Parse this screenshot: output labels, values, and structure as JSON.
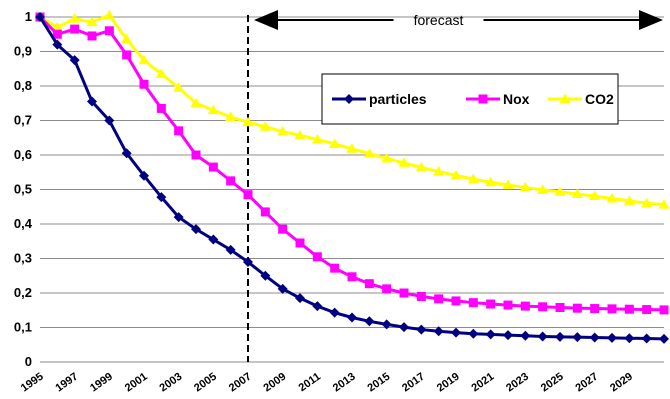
{
  "chart_data": {
    "type": "line",
    "title": "",
    "xlabel": "",
    "ylabel": "",
    "ylim": [
      0,
      1
    ],
    "yticks": [
      "0",
      "0,1",
      "0,2",
      "0,3",
      "0,4",
      "0,5",
      "0,6",
      "0,7",
      "0,8",
      "0,9",
      "1"
    ],
    "x": [
      1995,
      1996,
      1997,
      1998,
      1999,
      2000,
      2001,
      2002,
      2003,
      2004,
      2005,
      2006,
      2007,
      2008,
      2009,
      2010,
      2011,
      2012,
      2013,
      2014,
      2015,
      2016,
      2017,
      2018,
      2019,
      2020,
      2021,
      2022,
      2023,
      2024,
      2025,
      2026,
      2027,
      2028,
      2029,
      2030,
      2031
    ],
    "xtick_labels": [
      "1995",
      "1997",
      "1999",
      "2001",
      "2003",
      "2005",
      "2007",
      "2009",
      "2011",
      "2013",
      "2015",
      "2017",
      "2019",
      "2021",
      "2023",
      "2025",
      "2027",
      "2029"
    ],
    "grid": "horizontal",
    "legend_position": "top-right",
    "series": [
      {
        "name": "particles",
        "color": "#000080",
        "marker": "diamond",
        "values": [
          1.0,
          0.92,
          0.875,
          0.755,
          0.7,
          0.605,
          0.54,
          0.478,
          0.42,
          0.385,
          0.355,
          0.325,
          0.29,
          0.25,
          0.212,
          0.185,
          0.162,
          0.143,
          0.129,
          0.118,
          0.109,
          0.101,
          0.094,
          0.089,
          0.085,
          0.082,
          0.08,
          0.078,
          0.076,
          0.074,
          0.073,
          0.072,
          0.071,
          0.07,
          0.069,
          0.068,
          0.067
        ]
      },
      {
        "name": "Nox",
        "color": "#FF00FF",
        "marker": "square",
        "values": [
          1.0,
          0.95,
          0.965,
          0.945,
          0.96,
          0.89,
          0.805,
          0.735,
          0.67,
          0.6,
          0.565,
          0.525,
          0.485,
          0.435,
          0.385,
          0.345,
          0.305,
          0.272,
          0.247,
          0.227,
          0.212,
          0.2,
          0.19,
          0.183,
          0.177,
          0.172,
          0.168,
          0.165,
          0.162,
          0.16,
          0.158,
          0.156,
          0.155,
          0.154,
          0.153,
          0.152,
          0.151
        ]
      },
      {
        "name": "CO2",
        "color": "#FFFF00",
        "marker": "triangle",
        "values": [
          1.0,
          0.97,
          0.995,
          0.985,
          1.005,
          0.935,
          0.875,
          0.835,
          0.795,
          0.75,
          0.73,
          0.71,
          0.695,
          0.682,
          0.668,
          0.657,
          0.645,
          0.632,
          0.618,
          0.604,
          0.59,
          0.577,
          0.564,
          0.552,
          0.541,
          0.53,
          0.521,
          0.513,
          0.506,
          0.499,
          0.493,
          0.487,
          0.481,
          0.474,
          0.467,
          0.46,
          0.456
        ]
      }
    ],
    "annotations": [
      {
        "text": "forecast",
        "kind": "double-arrow",
        "from_x": 2007,
        "to_x": 2031
      }
    ],
    "vertical_line": {
      "x": 2007,
      "style": "dashed"
    }
  }
}
